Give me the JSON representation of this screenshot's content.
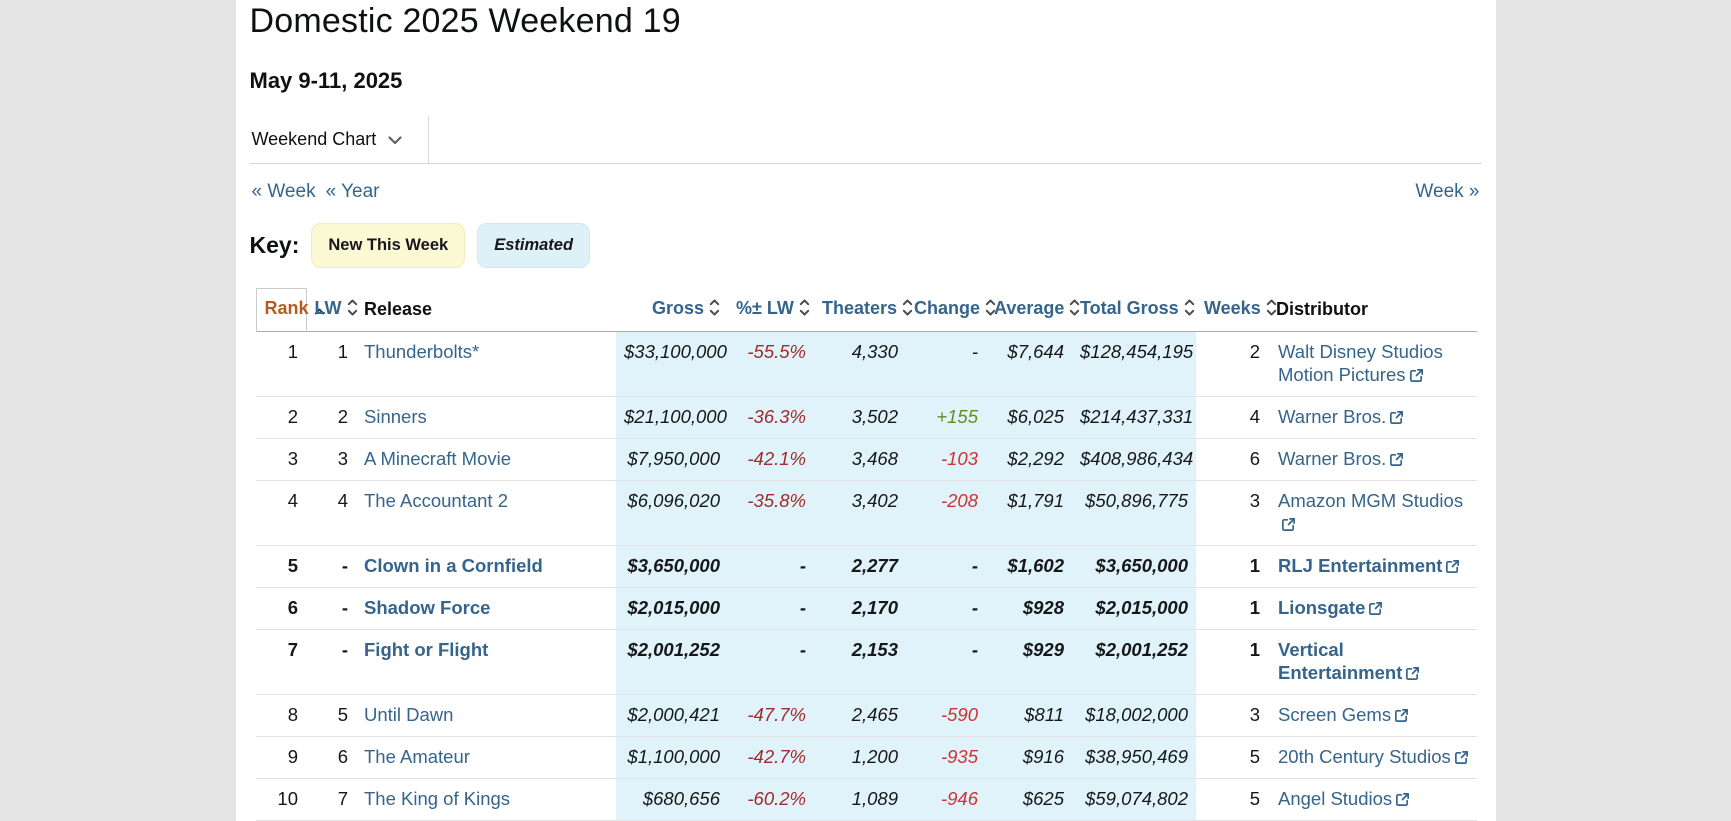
{
  "colors": {
    "link_blue": "#35648c",
    "sort_header": "#35648c",
    "rank_orange": "#b45c22",
    "negative_red": "#a12a2a",
    "change_negative": "#cc3333",
    "positive_green": "#668b1f",
    "estimated_bg": "#e1f3fa",
    "new_badge_bg": "#fbf8d4",
    "est_badge_bg": "#def0f8"
  },
  "header": {
    "title": "Domestic 2025 Weekend 19",
    "date_range": "May 9-11, 2025",
    "chart_selector": "Weekend Chart"
  },
  "nav": {
    "prev_week": "« Week",
    "prev_year": "« Year",
    "next_week": "Week »"
  },
  "key": {
    "label": "Key:",
    "new_this_week": "New This Week",
    "estimated": "Estimated"
  },
  "table": {
    "columns": [
      {
        "key": "rank",
        "label": "Rank",
        "sortable": true,
        "sort_active": "asc",
        "align": "right"
      },
      {
        "key": "lw",
        "label": "LW",
        "sortable": true,
        "align": "right"
      },
      {
        "key": "release",
        "label": "Release",
        "sortable": false,
        "align": "left"
      },
      {
        "key": "gross",
        "label": "Gross",
        "sortable": true,
        "align": "right",
        "estimated": true
      },
      {
        "key": "pct_lw",
        "label": "%± LW",
        "sortable": true,
        "align": "right",
        "estimated": true
      },
      {
        "key": "theaters",
        "label": "Theaters",
        "sortable": true,
        "align": "right",
        "estimated": true
      },
      {
        "key": "change",
        "label": "Change",
        "sortable": true,
        "align": "right",
        "estimated": true
      },
      {
        "key": "average",
        "label": "Average",
        "sortable": true,
        "align": "right",
        "estimated": true
      },
      {
        "key": "total_gross",
        "label": "Total Gross",
        "sortable": true,
        "align": "right",
        "estimated": true
      },
      {
        "key": "weeks",
        "label": "Weeks",
        "sortable": true,
        "align": "right"
      },
      {
        "key": "distributor",
        "label": "Distributor",
        "sortable": false,
        "align": "left"
      }
    ],
    "rows": [
      {
        "rank": "1",
        "lw": "1",
        "release": "Thunderbolts*",
        "gross": "$33,100,000",
        "pct_lw": "-55.5%",
        "theaters": "4,330",
        "change": "-",
        "average": "$7,644",
        "total_gross": "$128,454,195",
        "weeks": "2",
        "distributor": "Walt Disney Studios Motion Pictures",
        "new_this_week": false
      },
      {
        "rank": "2",
        "lw": "2",
        "release": "Sinners",
        "gross": "$21,100,000",
        "pct_lw": "-36.3%",
        "theaters": "3,502",
        "change": "+155",
        "average": "$6,025",
        "total_gross": "$214,437,331",
        "weeks": "4",
        "distributor": "Warner Bros.",
        "new_this_week": false
      },
      {
        "rank": "3",
        "lw": "3",
        "release": "A Minecraft Movie",
        "gross": "$7,950,000",
        "pct_lw": "-42.1%",
        "theaters": "3,468",
        "change": "-103",
        "average": "$2,292",
        "total_gross": "$408,986,434",
        "weeks": "6",
        "distributor": "Warner Bros.",
        "new_this_week": false
      },
      {
        "rank": "4",
        "lw": "4",
        "release": "The Accountant 2",
        "gross": "$6,096,020",
        "pct_lw": "-35.8%",
        "theaters": "3,402",
        "change": "-208",
        "average": "$1,791",
        "total_gross": "$50,896,775",
        "weeks": "3",
        "distributor": "Amazon MGM Studios",
        "new_this_week": false
      },
      {
        "rank": "5",
        "lw": "-",
        "release": "Clown in a Cornfield",
        "gross": "$3,650,000",
        "pct_lw": "-",
        "theaters": "2,277",
        "change": "-",
        "average": "$1,602",
        "total_gross": "$3,650,000",
        "weeks": "1",
        "distributor": "RLJ Entertainment",
        "new_this_week": true
      },
      {
        "rank": "6",
        "lw": "-",
        "release": "Shadow Force",
        "gross": "$2,015,000",
        "pct_lw": "-",
        "theaters": "2,170",
        "change": "-",
        "average": "$928",
        "total_gross": "$2,015,000",
        "weeks": "1",
        "distributor": "Lionsgate",
        "new_this_week": true
      },
      {
        "rank": "7",
        "lw": "-",
        "release": "Fight or Flight",
        "gross": "$2,001,252",
        "pct_lw": "-",
        "theaters": "2,153",
        "change": "-",
        "average": "$929",
        "total_gross": "$2,001,252",
        "weeks": "1",
        "distributor": "Vertical Entertainment",
        "new_this_week": true
      },
      {
        "rank": "8",
        "lw": "5",
        "release": "Until Dawn",
        "gross": "$2,000,421",
        "pct_lw": "-47.7%",
        "theaters": "2,465",
        "change": "-590",
        "average": "$811",
        "total_gross": "$18,002,000",
        "weeks": "3",
        "distributor": "Screen Gems",
        "new_this_week": false
      },
      {
        "rank": "9",
        "lw": "6",
        "release": "The Amateur",
        "gross": "$1,100,000",
        "pct_lw": "-42.7%",
        "theaters": "1,200",
        "change": "-935",
        "average": "$916",
        "total_gross": "$38,950,469",
        "weeks": "5",
        "distributor": "20th Century Studios",
        "new_this_week": false
      },
      {
        "rank": "10",
        "lw": "7",
        "release": "The King of Kings",
        "gross": "$680,656",
        "pct_lw": "-60.2%",
        "theaters": "1,089",
        "change": "-946",
        "average": "$625",
        "total_gross": "$59,074,802",
        "weeks": "5",
        "distributor": "Angel Studios",
        "new_this_week": false
      }
    ]
  }
}
